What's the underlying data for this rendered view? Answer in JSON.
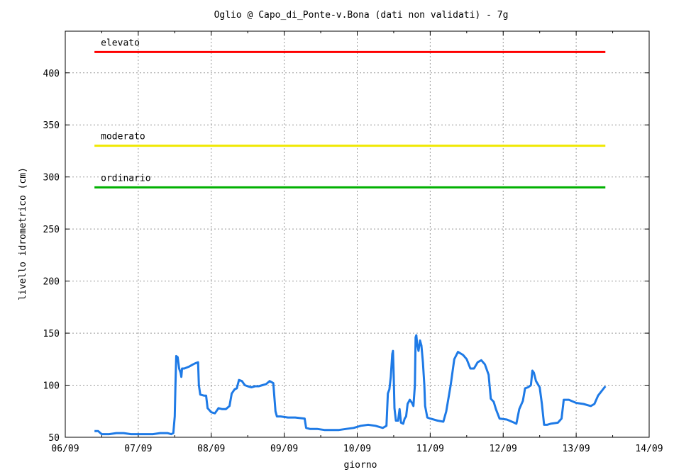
{
  "chart_data": {
    "type": "line",
    "title": "Oglio @  Capo_di_Ponte-v.Bona (dati non validati) - 7g",
    "xlabel": "giorno",
    "ylabel": "livello idrometrico (cm)",
    "x_ticks": [
      "06/09",
      "07/09",
      "08/09",
      "09/09",
      "10/09",
      "11/09",
      "12/09",
      "13/09",
      "14/09"
    ],
    "xlim": [
      0,
      8
    ],
    "y_ticks": [
      50,
      100,
      150,
      200,
      250,
      300,
      350,
      400
    ],
    "ylim": [
      50,
      440
    ],
    "grid": true,
    "thresholds": [
      {
        "label": "elevato",
        "value": 420,
        "color": "#ff0000",
        "x_start": 0.4,
        "x_end": 7.4
      },
      {
        "label": "moderato",
        "value": 330,
        "color": "#f0e800",
        "x_start": 0.4,
        "x_end": 7.4
      },
      {
        "label": "ordinario",
        "value": 290,
        "color": "#00b000",
        "x_start": 0.4,
        "x_end": 7.4
      }
    ],
    "series": [
      {
        "color": "#1e7ae6",
        "points": [
          [
            0.4,
            56
          ],
          [
            0.45,
            56
          ],
          [
            0.5,
            53
          ],
          [
            0.55,
            53
          ],
          [
            0.6,
            53
          ],
          [
            0.7,
            54
          ],
          [
            0.8,
            54
          ],
          [
            0.9,
            53
          ],
          [
            1.0,
            53
          ],
          [
            1.1,
            53
          ],
          [
            1.2,
            53
          ],
          [
            1.3,
            54
          ],
          [
            1.4,
            54
          ],
          [
            1.45,
            53
          ],
          [
            1.48,
            54
          ],
          [
            1.5,
            70
          ],
          [
            1.51,
            100
          ],
          [
            1.52,
            128
          ],
          [
            1.54,
            127
          ],
          [
            1.56,
            116
          ],
          [
            1.58,
            112
          ],
          [
            1.59,
            108
          ],
          [
            1.6,
            116
          ],
          [
            1.63,
            116
          ],
          [
            1.7,
            118
          ],
          [
            1.75,
            120
          ],
          [
            1.78,
            121
          ],
          [
            1.82,
            122
          ],
          [
            1.83,
            100
          ],
          [
            1.85,
            91
          ],
          [
            1.9,
            90
          ],
          [
            1.93,
            90
          ],
          [
            1.95,
            78
          ],
          [
            2.0,
            74
          ],
          [
            2.05,
            73
          ],
          [
            2.1,
            78
          ],
          [
            2.15,
            77
          ],
          [
            2.2,
            77
          ],
          [
            2.25,
            80
          ],
          [
            2.28,
            92
          ],
          [
            2.32,
            96
          ],
          [
            2.35,
            97
          ],
          [
            2.38,
            105
          ],
          [
            2.42,
            104
          ],
          [
            2.46,
            100
          ],
          [
            2.5,
            99
          ],
          [
            2.55,
            98
          ],
          [
            2.6,
            99
          ],
          [
            2.65,
            99
          ],
          [
            2.7,
            100
          ],
          [
            2.75,
            101
          ],
          [
            2.8,
            104
          ],
          [
            2.85,
            102
          ],
          [
            2.88,
            75
          ],
          [
            2.9,
            70
          ],
          [
            2.95,
            70
          ],
          [
            3.05,
            69
          ],
          [
            3.15,
            69
          ],
          [
            3.28,
            68
          ],
          [
            3.3,
            59
          ],
          [
            3.35,
            58
          ],
          [
            3.45,
            58
          ],
          [
            3.55,
            57
          ],
          [
            3.65,
            57
          ],
          [
            3.75,
            57
          ],
          [
            3.85,
            58
          ],
          [
            3.95,
            59
          ],
          [
            4.05,
            61
          ],
          [
            4.15,
            62
          ],
          [
            4.25,
            61
          ],
          [
            4.35,
            59
          ],
          [
            4.4,
            61
          ],
          [
            4.42,
            92
          ],
          [
            4.44,
            96
          ],
          [
            4.46,
            108
          ],
          [
            4.48,
            130
          ],
          [
            4.49,
            133
          ],
          [
            4.5,
            110
          ],
          [
            4.51,
            78
          ],
          [
            4.53,
            66
          ],
          [
            4.56,
            66
          ],
          [
            4.58,
            77
          ],
          [
            4.6,
            64
          ],
          [
            4.63,
            63
          ],
          [
            4.65,
            68
          ],
          [
            4.67,
            70
          ],
          [
            4.69,
            82
          ],
          [
            4.72,
            86
          ],
          [
            4.75,
            83
          ],
          [
            4.77,
            80
          ],
          [
            4.79,
            100
          ],
          [
            4.8,
            146
          ],
          [
            4.81,
            148
          ],
          [
            4.82,
            140
          ],
          [
            4.84,
            133
          ],
          [
            4.86,
            143
          ],
          [
            4.88,
            138
          ],
          [
            4.9,
            122
          ],
          [
            4.92,
            100
          ],
          [
            4.93,
            80
          ],
          [
            4.96,
            69
          ],
          [
            5.0,
            68
          ],
          [
            5.1,
            66
          ],
          [
            5.18,
            65
          ],
          [
            5.22,
            75
          ],
          [
            5.28,
            100
          ],
          [
            5.33,
            125
          ],
          [
            5.38,
            132
          ],
          [
            5.45,
            129
          ],
          [
            5.5,
            125
          ],
          [
            5.55,
            116
          ],
          [
            5.6,
            116
          ],
          [
            5.65,
            122
          ],
          [
            5.7,
            124
          ],
          [
            5.75,
            120
          ],
          [
            5.8,
            110
          ],
          [
            5.83,
            87
          ],
          [
            5.87,
            84
          ],
          [
            5.9,
            77
          ],
          [
            5.95,
            68
          ],
          [
            6.05,
            67
          ],
          [
            6.15,
            64
          ],
          [
            6.18,
            63
          ],
          [
            6.22,
            77
          ],
          [
            6.27,
            85
          ],
          [
            6.3,
            97
          ],
          [
            6.34,
            98
          ],
          [
            6.38,
            100
          ],
          [
            6.4,
            114
          ],
          [
            6.42,
            112
          ],
          [
            6.45,
            104
          ],
          [
            6.5,
            98
          ],
          [
            6.53,
            82
          ],
          [
            6.56,
            62
          ],
          [
            6.6,
            62
          ],
          [
            6.65,
            63
          ],
          [
            6.75,
            64
          ],
          [
            6.8,
            68
          ],
          [
            6.83,
            86
          ],
          [
            6.9,
            86
          ],
          [
            7.0,
            83
          ],
          [
            7.1,
            82
          ],
          [
            7.2,
            80
          ],
          [
            7.25,
            82
          ],
          [
            7.3,
            90
          ],
          [
            7.4,
            99
          ]
        ]
      }
    ]
  }
}
